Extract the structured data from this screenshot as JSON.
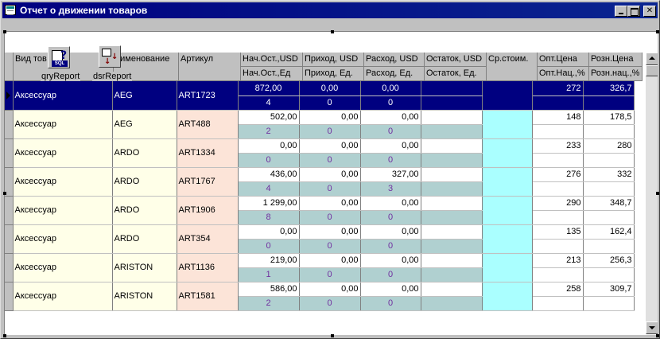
{
  "window": {
    "title": "Отчет о движении товаров"
  },
  "components": {
    "query": {
      "label": "qryReport",
      "icon": "sql-query-icon",
      "glyph": "?",
      "badge": "SQL"
    },
    "source": {
      "label": "dsrReport",
      "icon": "datasource-icon",
      "glyph1": "↓",
      "glyph2": "↓"
    }
  },
  "grid": {
    "headers": {
      "vid": "Вид тов",
      "name": "аименование",
      "art": "Артикул",
      "nach_usd": "Нач.Ост.,USD",
      "nach_ed": "Нач.Ост.,Ед",
      "prih_usd": "Приход, USD",
      "prih_ed": "Приход, Ед.",
      "rash_usd": "Расход, USD",
      "rash_ed": "Расход, Ед.",
      "ost_usd": "Остаток, USD",
      "ost_ed": "Остаток, Ед.",
      "sr": "Ср.стоим.",
      "opt": "Опт.Цена",
      "opt_nac": "Опт.Нац.,%",
      "roz": "Розн.Цена",
      "roz_nac": "Розн.нац.,%"
    },
    "rows": [
      {
        "vid": "Аксессуар",
        "name": "AEG",
        "art": "ART1723",
        "nach_usd": "872,00",
        "prih_usd": "0,00",
        "rash_usd": "0,00",
        "nach_ed": "4",
        "prih_ed": "0",
        "rash_ed": "0",
        "opt": "272",
        "roz": "326,7"
      },
      {
        "vid": "Аксессуар",
        "name": "AEG",
        "art": "ART488",
        "nach_usd": "502,00",
        "prih_usd": "0,00",
        "rash_usd": "0,00",
        "nach_ed": "2",
        "prih_ed": "0",
        "rash_ed": "0",
        "opt": "148",
        "roz": "178,5"
      },
      {
        "vid": "Аксессуар",
        "name": "ARDO",
        "art": "ART1334",
        "nach_usd": "0,00",
        "prih_usd": "0,00",
        "rash_usd": "0,00",
        "nach_ed": "0",
        "prih_ed": "0",
        "rash_ed": "0",
        "opt": "233",
        "roz": "280"
      },
      {
        "vid": "Аксессуар",
        "name": "ARDO",
        "art": "ART1767",
        "nach_usd": "436,00",
        "prih_usd": "0,00",
        "rash_usd": "327,00",
        "nach_ed": "4",
        "prih_ed": "0",
        "rash_ed": "3",
        "opt": "276",
        "roz": "332"
      },
      {
        "vid": "Аксессуар",
        "name": "ARDO",
        "art": "ART1906",
        "nach_usd": "1 299,00",
        "prih_usd": "0,00",
        "rash_usd": "0,00",
        "nach_ed": "8",
        "prih_ed": "0",
        "rash_ed": "0",
        "opt": "290",
        "roz": "348,7"
      },
      {
        "vid": "Аксессуар",
        "name": "ARDO",
        "art": "ART354",
        "nach_usd": "0,00",
        "prih_usd": "0,00",
        "rash_usd": "0,00",
        "nach_ed": "0",
        "prih_ed": "0",
        "rash_ed": "0",
        "opt": "135",
        "roz": "162,4"
      },
      {
        "vid": "Аксессуар",
        "name": "ARISTON",
        "art": "ART1136",
        "nach_usd": "219,00",
        "prih_usd": "0,00",
        "rash_usd": "0,00",
        "nach_ed": "1",
        "prih_ed": "0",
        "rash_ed": "0",
        "opt": "213",
        "roz": "256,3"
      },
      {
        "vid": "Аксессуар",
        "name": "ARISTON",
        "art": "ART1581",
        "nach_usd": "586,00",
        "prih_usd": "0,00",
        "rash_usd": "0,00",
        "nach_ed": "2",
        "prih_ed": "0",
        "rash_ed": "0",
        "opt": "258",
        "roz": "309,7"
      }
    ]
  },
  "colors": {
    "title_bar": "#000080",
    "selection": "#000080",
    "name_column": "#ffffe8",
    "article_column": "#fce4d8",
    "avg_cost_column": "#aaffff",
    "sub_row": "#b0d0d0",
    "sub_row_text": "#7030a0"
  }
}
